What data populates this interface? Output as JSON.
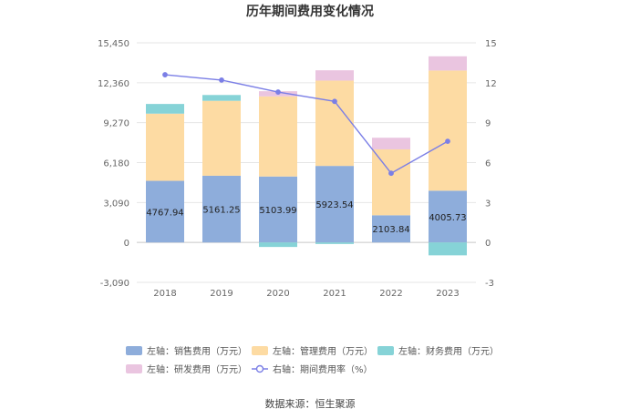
{
  "chart_data": {
    "type": "bar",
    "title": "历年期间费用变化情况",
    "categories": [
      "2018",
      "2019",
      "2020",
      "2021",
      "2022",
      "2023"
    ],
    "left_axis": {
      "ticks": [
        "15,450",
        "12,360",
        "9,270",
        "6,180",
        "3,090",
        "0",
        "-3,090"
      ],
      "range": [
        -3090,
        15450
      ]
    },
    "right_axis": {
      "ticks": [
        "15",
        "12",
        "9",
        "6",
        "3",
        "0",
        "-3"
      ],
      "range": [
        -3,
        15
      ]
    },
    "series": [
      {
        "name": "左轴：销售费用（万元）",
        "color": "#8eaddb",
        "values": [
          4767.94,
          5161.25,
          5103.99,
          5923.54,
          2103.84,
          4005.73
        ],
        "labels": [
          "4767.94",
          "5161.25",
          "5103.99",
          "5923.54",
          "2103.84",
          "4005.73"
        ]
      },
      {
        "name": "左轴：管理费用（万元）",
        "color": "#fddba3",
        "values": [
          5200,
          5800,
          6200,
          6600,
          5100,
          9300
        ]
      },
      {
        "name": "左轴：财务费用（万元）",
        "color": "#86d3d7",
        "values": [
          750,
          450,
          -350,
          -120,
          0,
          -1000
        ]
      },
      {
        "name": "左轴：研发费用（万元）",
        "color": "#eac5e0",
        "values": [
          0,
          0,
          400,
          800,
          900,
          1100
        ]
      }
    ],
    "line": {
      "name": "右轴：期间费用率（%）",
      "color": "#7b7fe6",
      "values": [
        12.6,
        12.2,
        11.3,
        10.6,
        5.2,
        7.6
      ]
    }
  },
  "source": "数据来源：恒生聚源"
}
